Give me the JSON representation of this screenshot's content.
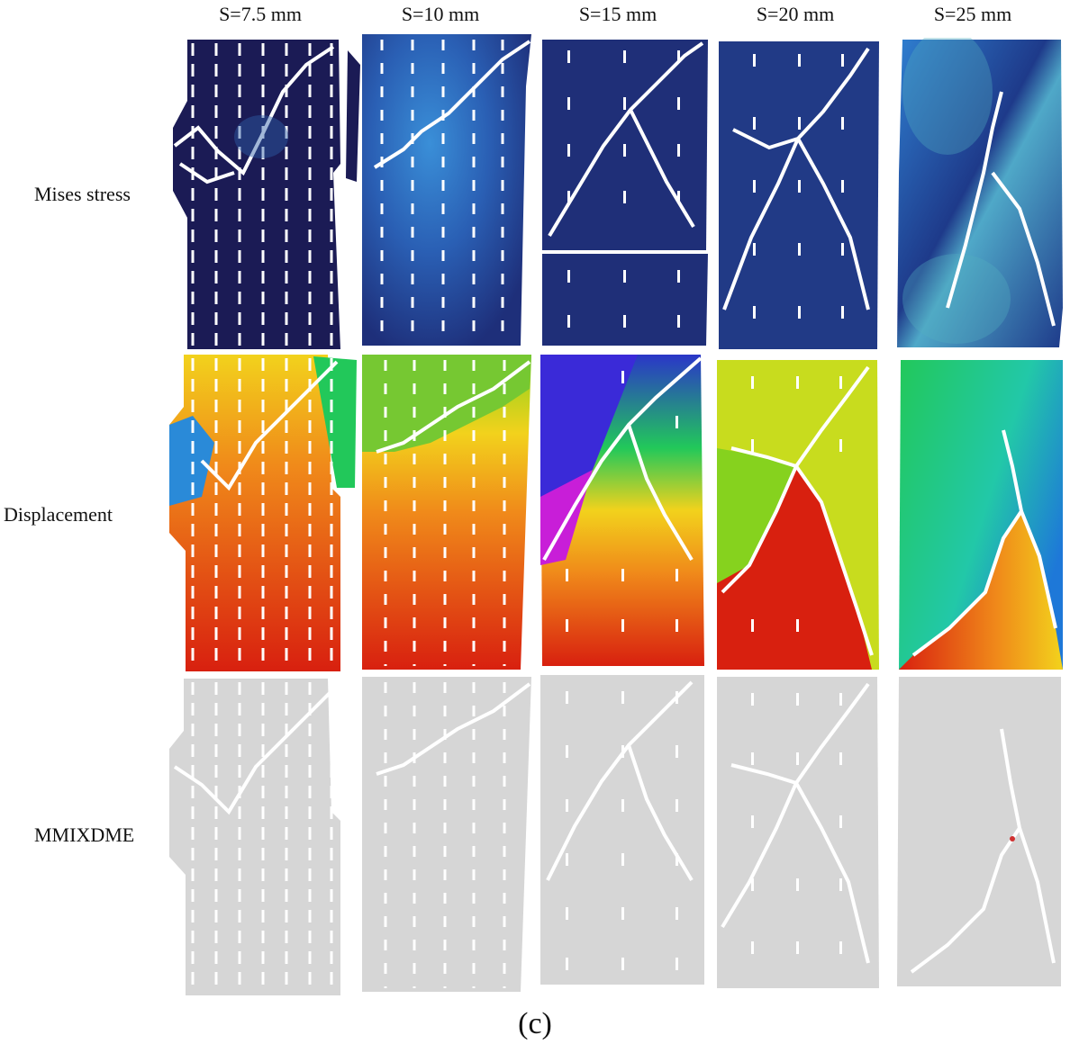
{
  "columns": [
    "S=7.5 mm",
    "S=10 mm",
    "S=15 mm",
    "S=20 mm",
    "S=25 mm"
  ],
  "rows": [
    "Mises stress",
    "Displacement",
    "MMIXDME"
  ],
  "caption": "(c)",
  "colors": {
    "stress_background": "#1b1b55",
    "stress_highlight": "#2f7fd0",
    "displacement_high": "#d8200f",
    "displacement_mid": "#f2d21c",
    "displacement_low": "#22c85a",
    "displacement_min": "#2a36c8",
    "mmixdme_background": "#d6d6d6",
    "crack": "#ffffff"
  }
}
